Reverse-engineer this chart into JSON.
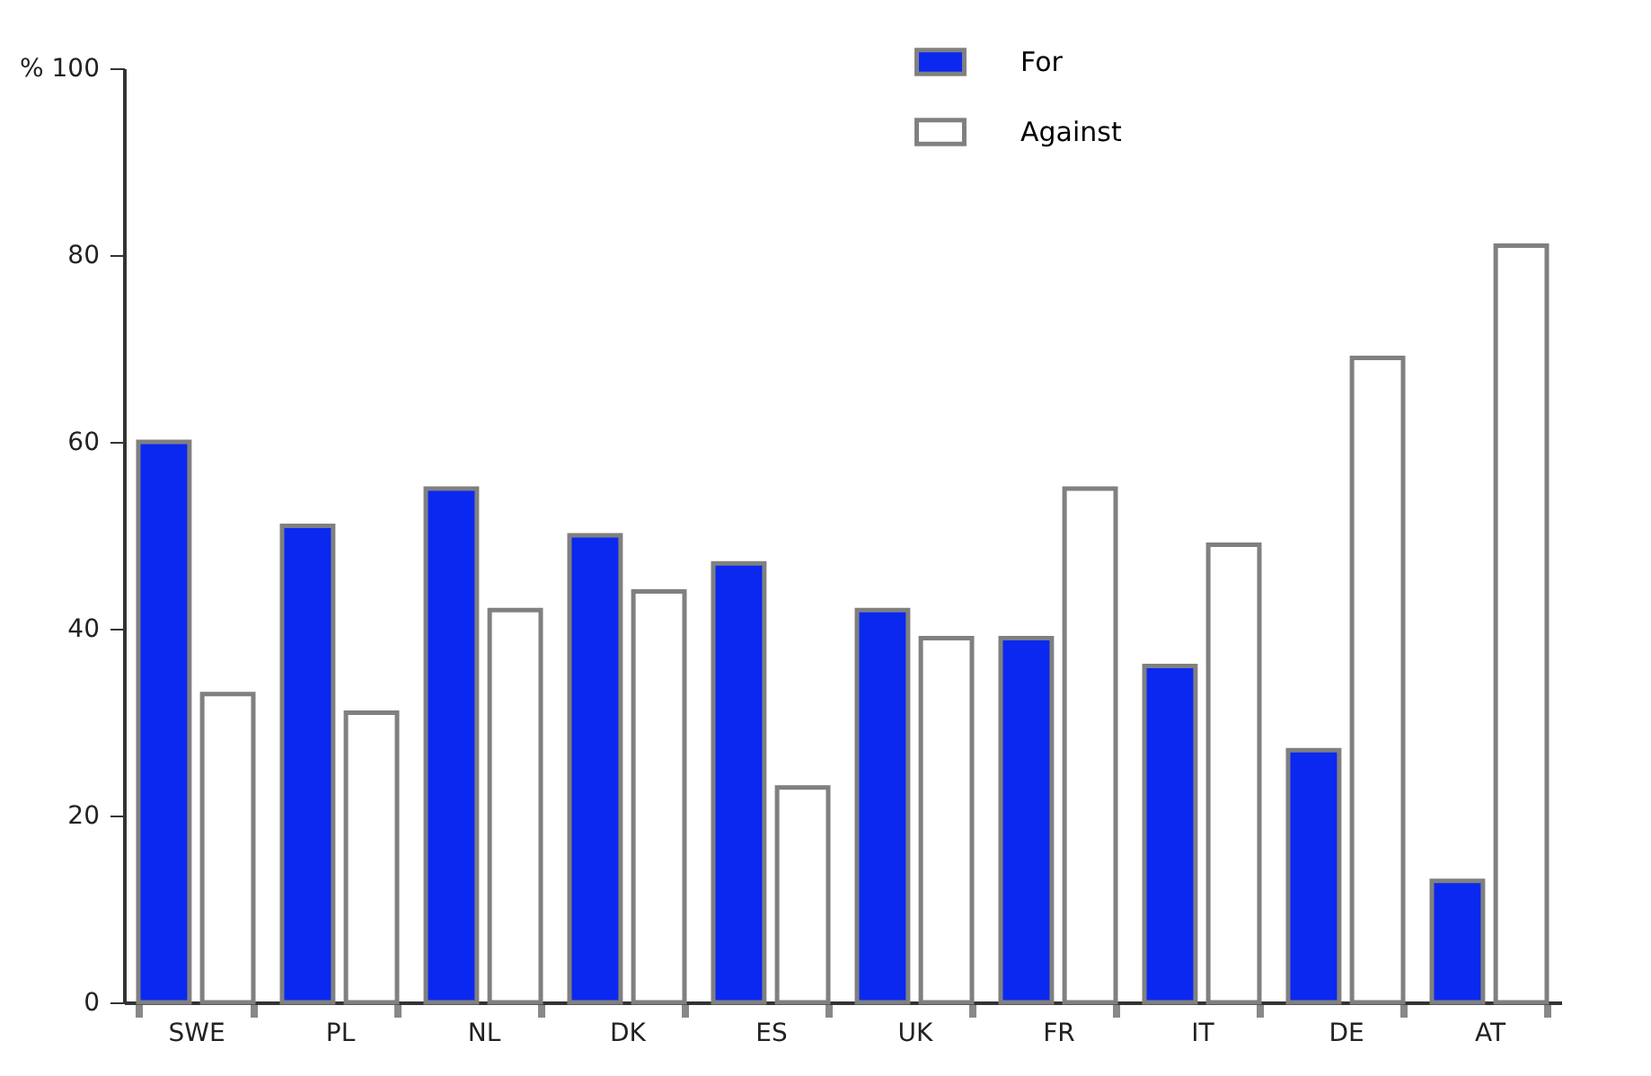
{
  "chart_data": {
    "type": "bar",
    "categories": [
      "SWE",
      "PL",
      "NL",
      "DK",
      "ES",
      "UK",
      "FR",
      "IT",
      "DE",
      "AT"
    ],
    "series": [
      {
        "name": "For",
        "color": "#0a28f0",
        "values": [
          60,
          51,
          55,
          50,
          47,
          42,
          39,
          36,
          27,
          13
        ]
      },
      {
        "name": "Against",
        "color": "#ffffff",
        "values": [
          33,
          31,
          42,
          44,
          23,
          39,
          55,
          49,
          69,
          81
        ]
      }
    ],
    "ylim": [
      0,
      100
    ],
    "yticks": [
      0,
      20,
      40,
      60,
      80,
      {
        "value": 100,
        "label": "% 100"
      }
    ],
    "grid": false,
    "legend": "top"
  }
}
